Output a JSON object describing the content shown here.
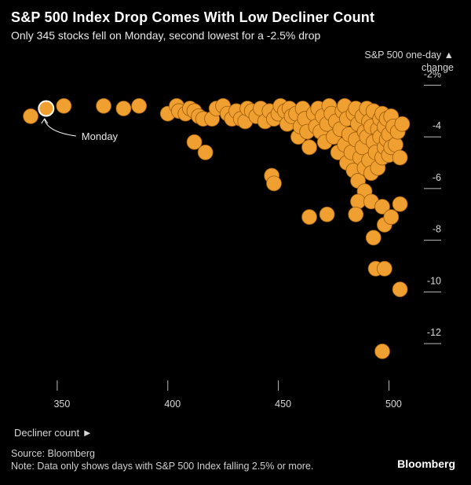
{
  "header": {
    "title": "S&P 500 Index Drop Comes With Low Decliner Count",
    "subtitle": "Only 345 stocks fell on Monday, second lowest for a -2.5% drop"
  },
  "axis": {
    "y_label_line1": "S&P 500 one-day ▲",
    "y_label_line2": "change",
    "x_caption": "Decliner count ►"
  },
  "footer": {
    "source": "Source: Bloomberg",
    "note": "Note: Data only shows days with S&P 500 Index falling 2.5% or more.",
    "brand": "Bloomberg"
  },
  "colors": {
    "point": "#F0A030",
    "point_stroke": "#9A5A08",
    "highlight_stroke": "#FFFFFF",
    "grid": "#BBBBBB",
    "background": "#000000"
  },
  "chart_data": {
    "type": "scatter",
    "title": "S&P 500 Index Drop Comes With Low Decliner Count",
    "subtitle": "Only 345 stocks fell on Monday, second lowest for a -2.5% drop",
    "xlabel": "Decliner count",
    "ylabel": "S&P 500 one-day change",
    "xlim": [
      333,
      508
    ],
    "ylim": [
      -13,
      -1.5
    ],
    "x_ticks": [
      350,
      400,
      450,
      500
    ],
    "x_tick_labels": [
      "350",
      "400",
      "450",
      "500"
    ],
    "y_ticks": [
      -2,
      -4,
      -6,
      -8,
      -10,
      -12
    ],
    "y_tick_labels": [
      "-2%",
      "-4",
      "-6",
      "-8",
      "-10",
      "-12"
    ],
    "annotations": [
      {
        "text": "Monday",
        "x": 345,
        "y": -2.9
      }
    ],
    "highlight": {
      "x": 345,
      "y": -2.9,
      "label": "Monday"
    },
    "points": [
      [
        338,
        -3.2
      ],
      [
        353,
        -2.8
      ],
      [
        371,
        -2.8
      ],
      [
        380,
        -2.9
      ],
      [
        387,
        -2.8
      ],
      [
        400,
        -3.1
      ],
      [
        404,
        -2.8
      ],
      [
        405,
        -3.0
      ],
      [
        408,
        -3.1
      ],
      [
        410,
        -2.9
      ],
      [
        412,
        -3.0
      ],
      [
        414,
        -3.2
      ],
      [
        416,
        -3.3
      ],
      [
        412,
        -4.2
      ],
      [
        417,
        -4.6
      ],
      [
        420,
        -3.3
      ],
      [
        422,
        -2.9
      ],
      [
        425,
        -2.8
      ],
      [
        427,
        -3.1
      ],
      [
        429,
        -3.3
      ],
      [
        431,
        -3.0
      ],
      [
        433,
        -3.3
      ],
      [
        435,
        -3.4
      ],
      [
        436,
        -2.9
      ],
      [
        438,
        -3.0
      ],
      [
        440,
        -3.2
      ],
      [
        442,
        -2.9
      ],
      [
        444,
        -3.4
      ],
      [
        446,
        -3.0
      ],
      [
        448,
        -3.3
      ],
      [
        450,
        -3.1
      ],
      [
        451,
        -2.8
      ],
      [
        453,
        -3.0
      ],
      [
        454,
        -3.5
      ],
      [
        455,
        -2.9
      ],
      [
        456,
        -3.2
      ],
      [
        458,
        -3.1
      ],
      [
        459,
        -4.0
      ],
      [
        460,
        -3.6
      ],
      [
        461,
        -2.9
      ],
      [
        462,
        -3.3
      ],
      [
        463,
        -3.8
      ],
      [
        464,
        -4.4
      ],
      [
        466,
        -3.1
      ],
      [
        467,
        -3.6
      ],
      [
        468,
        -2.9
      ],
      [
        469,
        -3.8
      ],
      [
        470,
        -3.2
      ],
      [
        471,
        -4.2
      ],
      [
        472,
        -3.5
      ],
      [
        473,
        -2.8
      ],
      [
        474,
        -3.1
      ],
      [
        475,
        -4.0
      ],
      [
        476,
        -3.4
      ],
      [
        477,
        -4.6
      ],
      [
        478,
        -3.7
      ],
      [
        479,
        -3.0
      ],
      [
        480,
        -2.8
      ],
      [
        480,
        -4.3
      ],
      [
        481,
        -3.3
      ],
      [
        481,
        -5.0
      ],
      [
        482,
        -3.9
      ],
      [
        483,
        -4.6
      ],
      [
        484,
        -3.1
      ],
      [
        484,
        -5.3
      ],
      [
        485,
        -2.9
      ],
      [
        485,
        -4.1
      ],
      [
        486,
        -3.5
      ],
      [
        486,
        -5.7
      ],
      [
        487,
        -4.8
      ],
      [
        488,
        -3.2
      ],
      [
        488,
        -4.4
      ],
      [
        489,
        -3.8
      ],
      [
        489,
        -5.2
      ],
      [
        490,
        -2.9
      ],
      [
        490,
        -4.0
      ],
      [
        491,
        -3.4
      ],
      [
        491,
        -4.9
      ],
      [
        492,
        -5.4
      ],
      [
        492,
        -3.6
      ],
      [
        493,
        -4.2
      ],
      [
        493,
        -3.0
      ],
      [
        494,
        -4.6
      ],
      [
        495,
        -3.7
      ],
      [
        495,
        -5.2
      ],
      [
        496,
        -4.0
      ],
      [
        496,
        -3.3
      ],
      [
        497,
        -4.8
      ],
      [
        497,
        -3.1
      ],
      [
        498,
        -4.4
      ],
      [
        498,
        -3.6
      ],
      [
        499,
        -4.1
      ],
      [
        499,
        -3.3
      ],
      [
        500,
        -4.7
      ],
      [
        500,
        -3.9
      ],
      [
        501,
        -4.4
      ],
      [
        501,
        -3.2
      ],
      [
        502,
        -3.6
      ],
      [
        503,
        -4.3
      ],
      [
        504,
        -3.8
      ],
      [
        505,
        -4.8
      ],
      [
        506,
        -3.5
      ],
      [
        489,
        -6.1
      ],
      [
        486,
        -6.5
      ],
      [
        492,
        -6.5
      ],
      [
        497,
        -6.7
      ],
      [
        505,
        -6.6
      ],
      [
        485,
        -7.0
      ],
      [
        498,
        -7.4
      ],
      [
        501,
        -7.1
      ],
      [
        493,
        -7.9
      ],
      [
        494,
        -9.1
      ],
      [
        498,
        -9.1
      ],
      [
        505,
        -9.9
      ],
      [
        447,
        -5.5
      ],
      [
        448,
        -5.8
      ],
      [
        464,
        -7.1
      ],
      [
        472,
        -7.0
      ],
      [
        497,
        -12.3
      ]
    ]
  }
}
